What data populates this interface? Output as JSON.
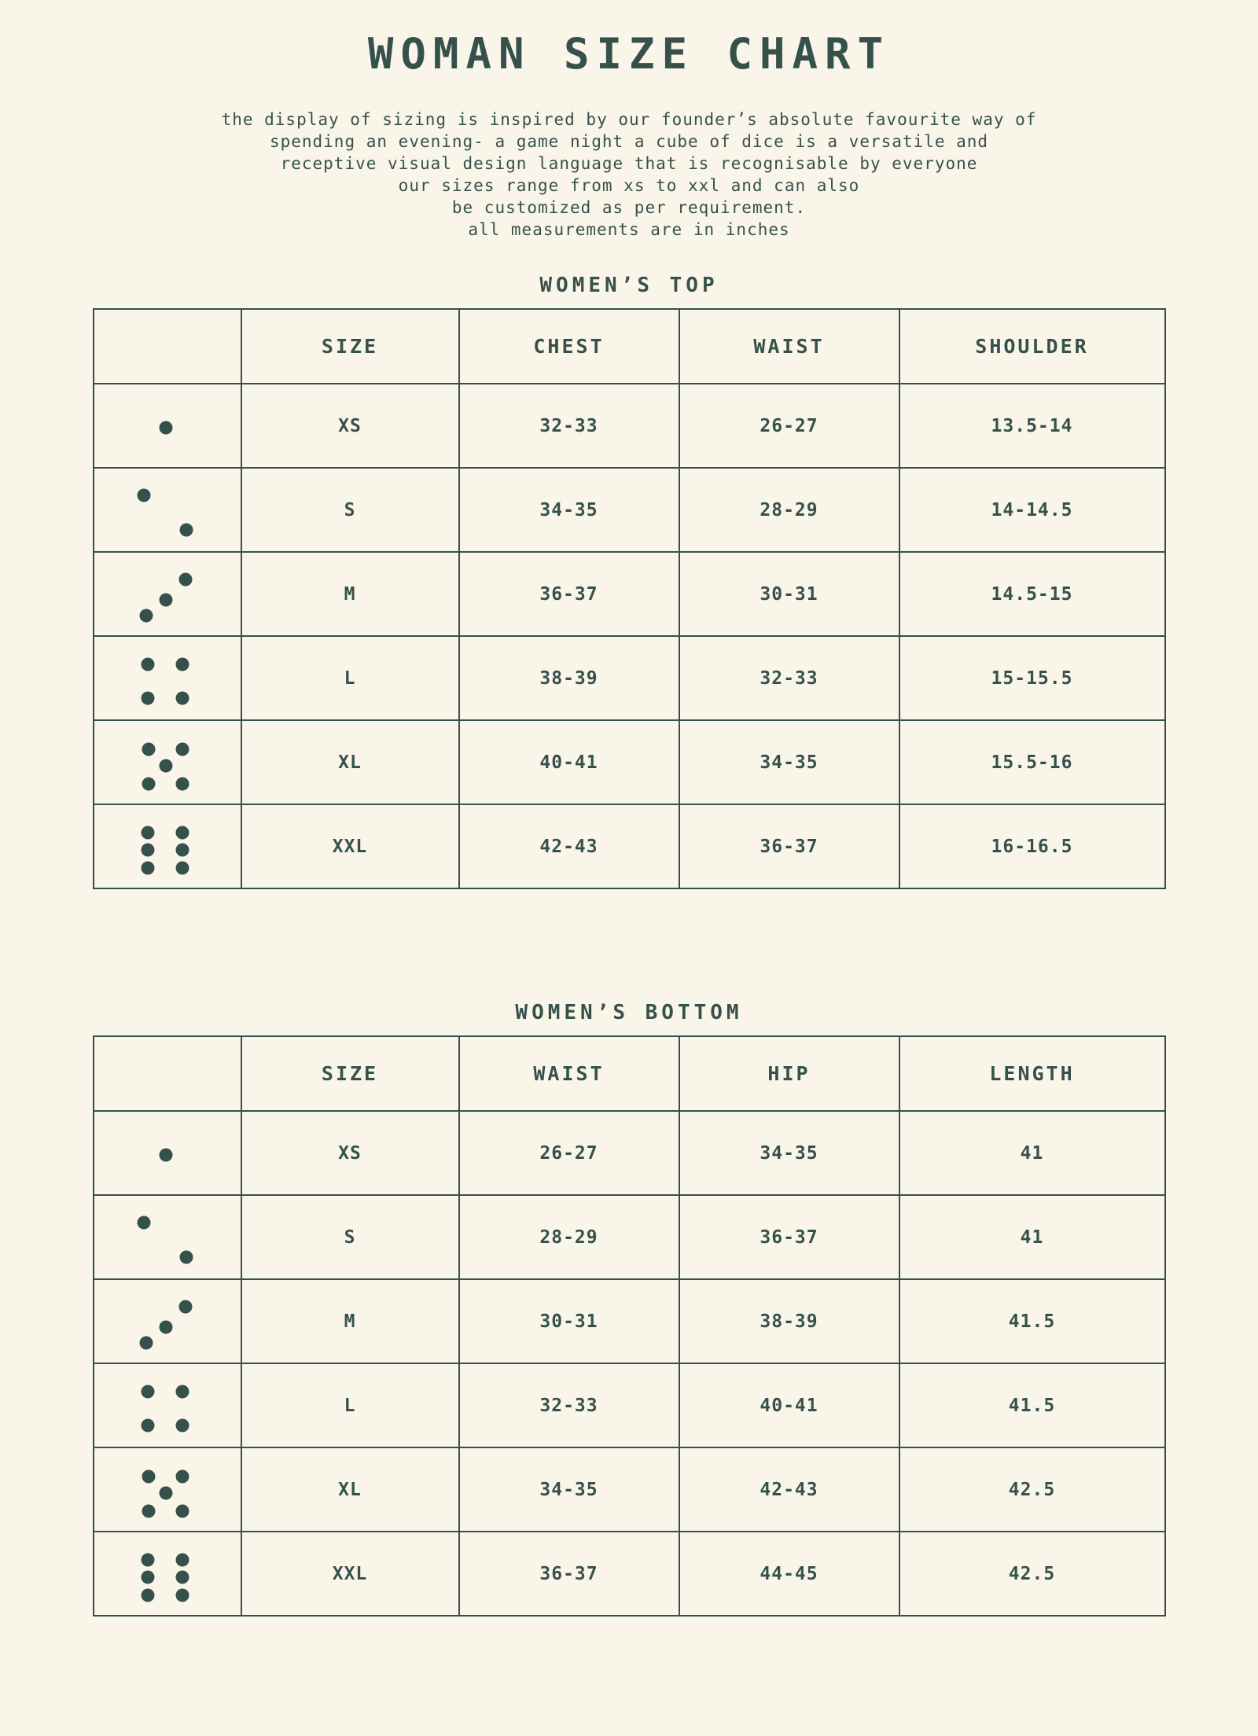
{
  "page": {
    "title": "WOMAN SIZE CHART",
    "intro_lines": [
      "the display of sizing is inspired by our founder’s absolute favourite way of",
      "spending an evening- a game night a cube of dice is a versatile and",
      "receptive visual design language that is recognisable by everyone",
      "our sizes range from xs to xxl and can also",
      "be customized as per requirement.",
      "all measurements are in inches"
    ]
  },
  "colors": {
    "background": "#f9f5e9",
    "ink": "#36514b"
  },
  "tables": [
    {
      "heading": "WOMEN’S TOP",
      "columns": [
        "",
        "SIZE",
        "CHEST",
        "WAIST",
        "SHOULDER"
      ],
      "rows": [
        {
          "dice": "dice-1",
          "size": "XS",
          "values": [
            "32-33",
            "26-27",
            "13.5-14"
          ]
        },
        {
          "dice": "dice-2",
          "size": "S",
          "values": [
            "34-35",
            "28-29",
            "14-14.5"
          ]
        },
        {
          "dice": "dice-3",
          "size": "M",
          "values": [
            "36-37",
            "30-31",
            "14.5-15"
          ]
        },
        {
          "dice": "dice-4",
          "size": "L",
          "values": [
            "38-39",
            "32-33",
            "15-15.5"
          ]
        },
        {
          "dice": "dice-5",
          "size": "XL",
          "values": [
            "40-41",
            "34-35",
            "15.5-16"
          ]
        },
        {
          "dice": "dice-6",
          "size": "XXL",
          "values": [
            "42-43",
            "36-37",
            "16-16.5"
          ]
        }
      ]
    },
    {
      "heading": "WOMEN’S BOTTOM",
      "columns": [
        "",
        "SIZE",
        "WAIST",
        "HIP",
        "LENGTH"
      ],
      "rows": [
        {
          "dice": "dice-1",
          "size": "XS",
          "values": [
            "26-27",
            "34-35",
            "41"
          ]
        },
        {
          "dice": "dice-2",
          "size": "S",
          "values": [
            "28-29",
            "36-37",
            "41"
          ]
        },
        {
          "dice": "dice-3",
          "size": "M",
          "values": [
            "30-31",
            "38-39",
            "41.5"
          ]
        },
        {
          "dice": "dice-4",
          "size": "L",
          "values": [
            "32-33",
            "40-41",
            "41.5"
          ]
        },
        {
          "dice": "dice-5",
          "size": "XL",
          "values": [
            "34-35",
            "42-43",
            "42.5"
          ]
        },
        {
          "dice": "dice-6",
          "size": "XXL",
          "values": [
            "36-37",
            "44-45",
            "42.5"
          ]
        }
      ]
    }
  ]
}
